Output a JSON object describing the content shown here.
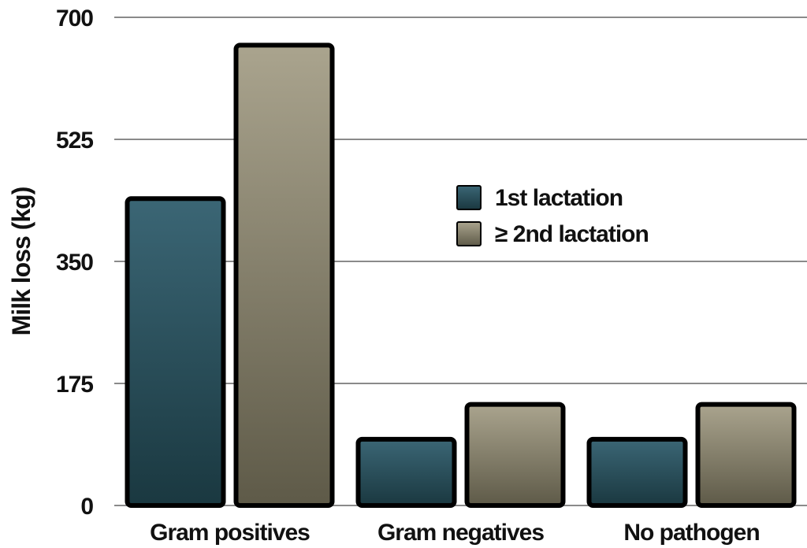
{
  "chart_data": {
    "type": "bar",
    "title": "",
    "xlabel": "",
    "ylabel": "Milk loss (kg)",
    "ylim": [
      0,
      700
    ],
    "yticks": [
      0,
      175,
      350,
      525,
      700
    ],
    "categories": [
      "Gram positives",
      "Gram negatives",
      "No pathogen"
    ],
    "series": [
      {
        "name": "1st lactation",
        "values": [
          440,
          95,
          95
        ],
        "color": "#2e5360"
      },
      {
        "name": "≥ 2nd lactation",
        "values": [
          660,
          145,
          145
        ],
        "color": "#9a9480"
      }
    ],
    "grid": true,
    "legend_position": "top-right"
  }
}
